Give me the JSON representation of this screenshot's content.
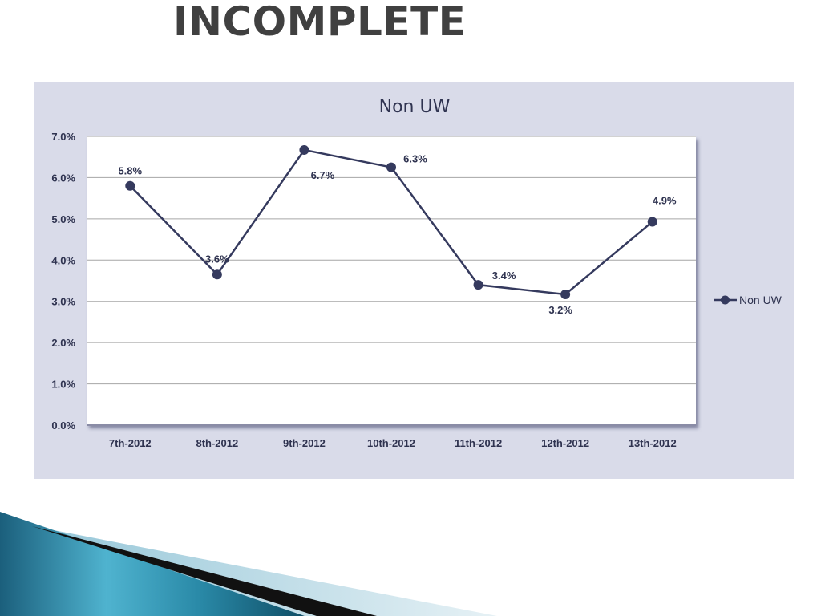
{
  "slide": {
    "title": "INCOMPLETE"
  },
  "colors": {
    "panel_background": "#d9dbe9",
    "plot_background": "#ffffff",
    "series_line": "#353a5e",
    "gridline": "#a6a6a6",
    "text": "#2f3350"
  },
  "chart_data": {
    "type": "line",
    "title": "Non UW",
    "xlabel": "",
    "ylabel": "",
    "categories": [
      "7th-2012",
      "8th-2012",
      "9th-2012",
      "10th-2012",
      "11th-2012",
      "12th-2012",
      "13th-2012"
    ],
    "series": [
      {
        "name": "Non UW",
        "values": [
          5.8,
          3.65,
          6.67,
          6.25,
          3.4,
          3.17,
          4.93
        ],
        "data_labels": [
          "5.8%",
          "3.6%",
          "6.7%",
          "6.3%",
          "3.4%",
          "3.2%",
          "4.9%"
        ]
      }
    ],
    "ylim": [
      0,
      7
    ],
    "yticks": [
      0,
      1,
      2,
      3,
      4,
      5,
      6,
      7
    ],
    "ytick_labels": [
      "0.0%",
      "1.0%",
      "2.0%",
      "3.0%",
      "4.0%",
      "5.0%",
      "6.0%",
      "7.0%"
    ],
    "grid": true,
    "legend": {
      "position": "right",
      "entries": [
        "Non UW"
      ]
    }
  }
}
